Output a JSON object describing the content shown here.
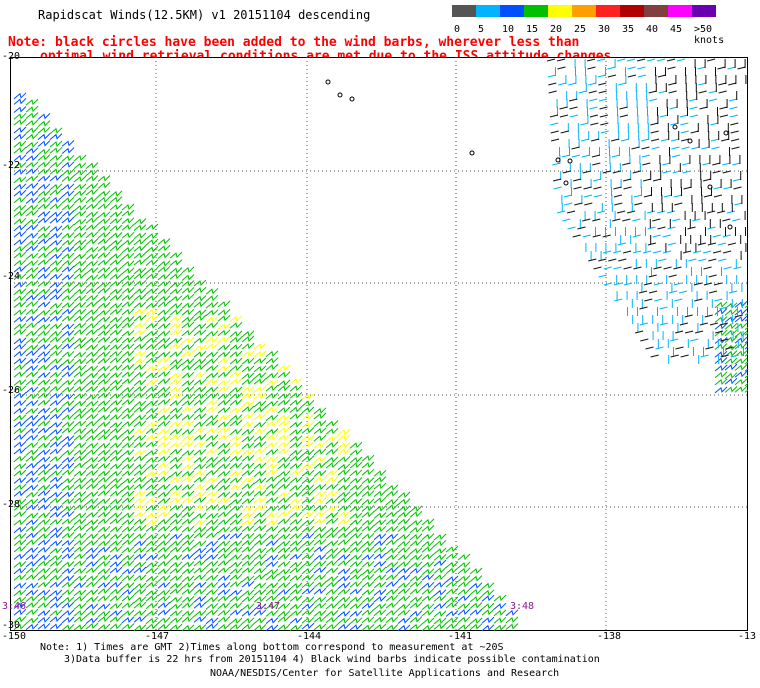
{
  "title": "Rapidscat Winds(12.5KM) v1 20151104 descending",
  "note_line1": "Note: black circles have been added to the wind barbs, wherever less than",
  "note_line2": "optimal wind retrieval conditions are met due to the ISS attitude changes.",
  "legend": {
    "colors": [
      "#555555",
      "#00b4ff",
      "#0050ff",
      "#00c000",
      "#ffff00",
      "#ffa000",
      "#ff2020",
      "#b00000",
      "#804040",
      "#ff00ff",
      "#6a00b0"
    ],
    "labels": [
      "0",
      "5",
      "10",
      "15",
      "20",
      "25",
      "30",
      "35",
      "40",
      "45",
      ">50 knots"
    ]
  },
  "axes": {
    "lat_labels": [
      "-20",
      "-22",
      "-24",
      "-26",
      "-28",
      "-30"
    ],
    "lon_labels": [
      "-150",
      "-147",
      "-144",
      "-141",
      "-138",
      "-13"
    ]
  },
  "times": [
    "3:46",
    "3:47",
    "3:48"
  ],
  "footnote1": "Note: 1) Times are GMT 2)Times along bottom correspond to measurement at ~20S",
  "footnote2": "3)Data buffer is 22 hrs from 20151104 4) Black wind barbs indicate possible contamination",
  "credit": "NOAA/NESDIS/Center for Satellite Applications and Research",
  "colors": {
    "note": "#ff0000",
    "times": "#8a1a8a"
  }
}
